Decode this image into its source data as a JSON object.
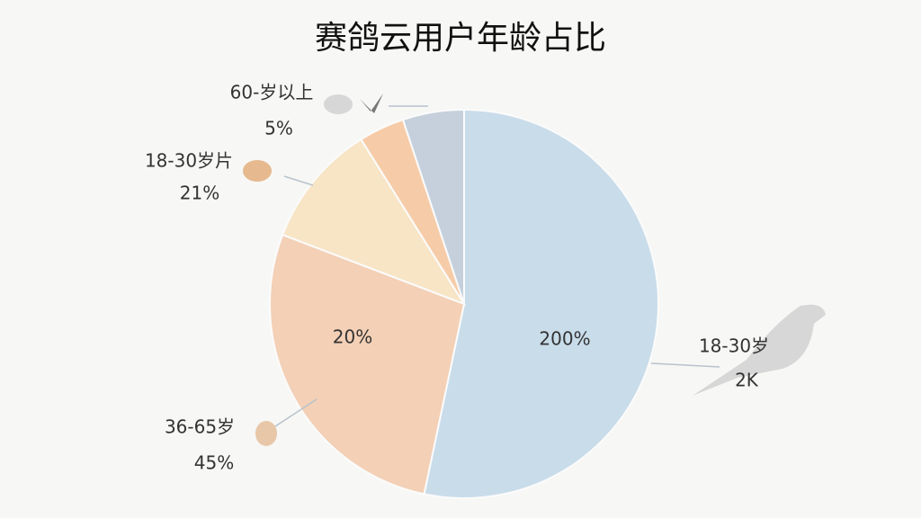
{
  "chart_data": {
    "type": "pie",
    "title": "赛鸽云用户年龄占比",
    "values": [
      53.3,
      27.5,
      10.3,
      3.8,
      5.1
    ],
    "colors": [
      "#c9dcea",
      "#f3d0b6",
      "#f7e5c6",
      "#f6cca8",
      "#c5d0dc"
    ],
    "annotations": [
      "60-岁以上",
      "5%",
      "18-30岁片",
      "21%",
      "20%",
      "200%",
      "18-30岁",
      "2K",
      "36-65岁",
      "45%"
    ]
  }
}
